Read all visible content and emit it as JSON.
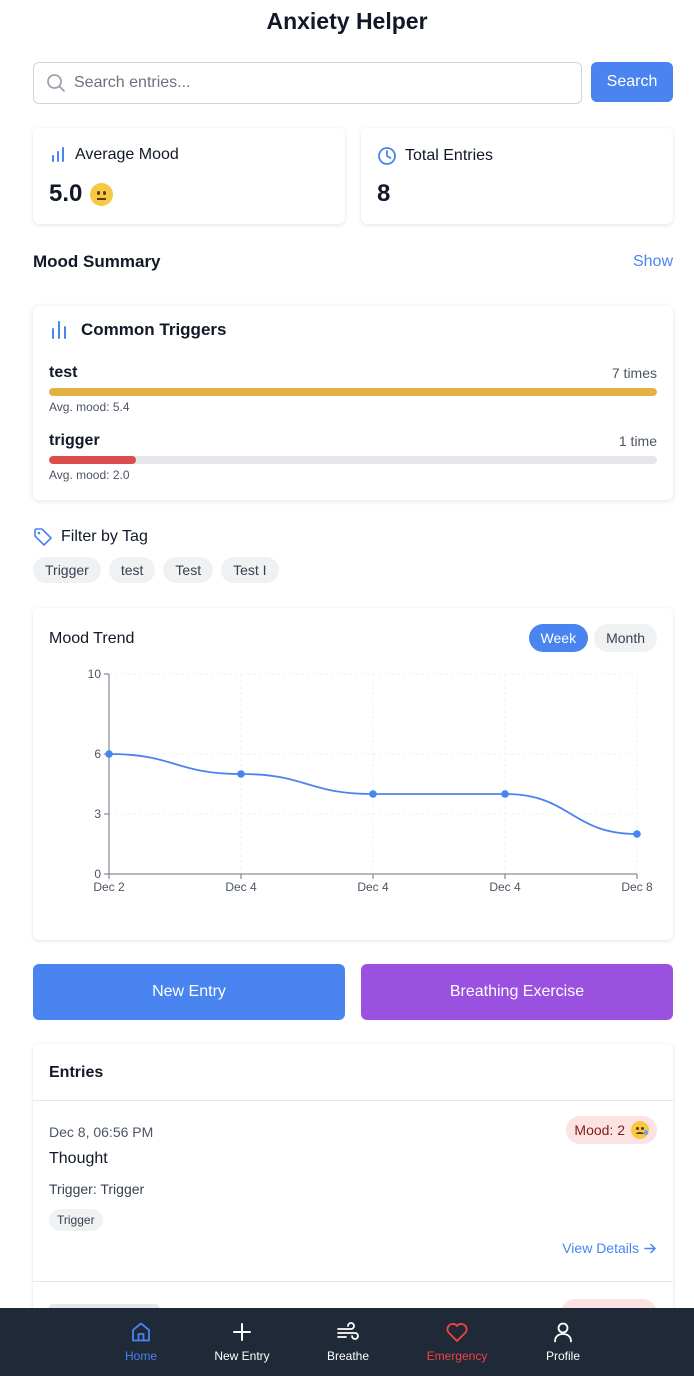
{
  "app": {
    "title": "Anxiety Helper"
  },
  "search": {
    "placeholder": "Search entries...",
    "value": "",
    "button_label": "Search"
  },
  "stats": {
    "average_mood": {
      "label": "Average Mood",
      "value": "5.0",
      "emoji": "neutral-face-emoji",
      "icon": "bar-chart-icon"
    },
    "total_entries": {
      "label": "Total Entries",
      "value": "8",
      "icon": "clock-icon"
    }
  },
  "mood_summary": {
    "title": "Mood Summary",
    "toggle_label": "Show"
  },
  "common_triggers": {
    "title": "Common Triggers",
    "items": [
      {
        "name": "test",
        "count_label": "7 times",
        "avg_label": "Avg. mood: 5.4",
        "fraction": 1.0,
        "color": "#e3b341"
      },
      {
        "name": "trigger",
        "count_label": "1 time",
        "avg_label": "Avg. mood: 2.0",
        "fraction": 0.143,
        "color": "#dc4c4c"
      }
    ]
  },
  "filter": {
    "title": "Filter by Tag",
    "tags": [
      "Trigger",
      "test",
      "Test",
      "Test I"
    ]
  },
  "mood_trend": {
    "title": "Mood Trend",
    "ranges": [
      {
        "label": "Week",
        "active": true
      },
      {
        "label": "Month",
        "active": false
      }
    ]
  },
  "chart_data": {
    "type": "line",
    "categories": [
      "Dec 2",
      "Dec 4",
      "Dec 4",
      "Dec 4",
      "Dec 8"
    ],
    "values": [
      6,
      5,
      4,
      4,
      2
    ],
    "ylim": [
      0,
      10
    ],
    "yticks": [
      0,
      3,
      6,
      10
    ],
    "grid": true,
    "color": "#4a84f0"
  },
  "actions": {
    "new_entry": {
      "label": "New Entry",
      "color": "#4a84f0"
    },
    "breathing": {
      "label": "Breathing Exercise",
      "color": "#9b51e0"
    }
  },
  "entries": {
    "title": "Entries",
    "items": [
      {
        "date": "Dec 8, 06:56 PM",
        "mood_label": "Mood: 2",
        "emoji": "sad-tear-face-emoji",
        "thought": "Thought",
        "trigger": "Trigger: Trigger",
        "tag": "Trigger",
        "details_label": "View Details"
      }
    ]
  },
  "nav": {
    "items": [
      {
        "label": "Home",
        "icon": "home-icon",
        "color": "#4a84f0"
      },
      {
        "label": "New Entry",
        "icon": "plus-icon",
        "color": "#ffffff"
      },
      {
        "label": "Breathe",
        "icon": "wind-icon",
        "color": "#ffffff"
      },
      {
        "label": "Emergency",
        "icon": "heart-icon",
        "color": "#ef4444"
      },
      {
        "label": "Profile",
        "icon": "user-icon",
        "color": "#ffffff"
      }
    ]
  }
}
